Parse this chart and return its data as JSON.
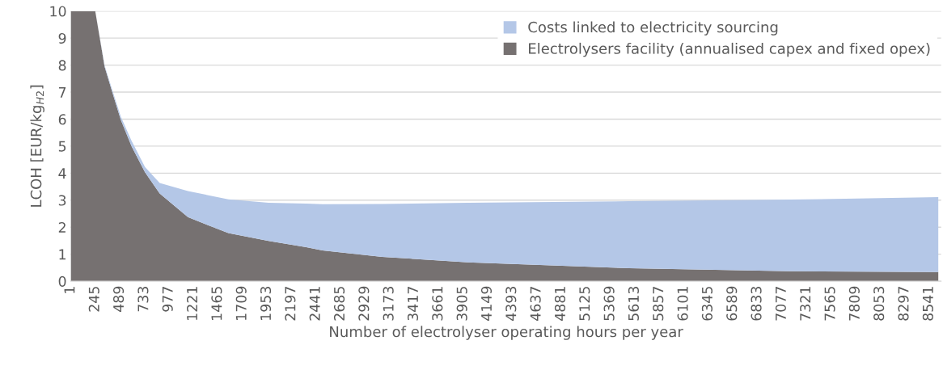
{
  "chart_data": {
    "type": "area",
    "stacked": true,
    "xlabel": "Number of electrolyser operating hours per year",
    "ylabel": "LCOH [EUR/kg$_{H2}$]",
    "x": [
      1,
      245,
      338,
      418,
      499,
      606,
      740,
      886,
      1167,
      1569,
      1970,
      2345,
      2506,
      3100,
      3952,
      5558,
      7163,
      8632
    ],
    "series": [
      {
        "name": "Electrolysers facility (annualised capex and fixed opex)",
        "color": "#767171",
        "values": [
          10,
          10,
          7.94,
          6.96,
          5.98,
          5.0,
          4.03,
          3.25,
          2.37,
          1.78,
          1.49,
          1.26,
          1.14,
          0.9,
          0.7,
          0.48,
          0.37,
          0.34
        ]
      },
      {
        "name": "Costs linked to electricity sourcing",
        "color": "#b4c7e7",
        "values": [
          0,
          0,
          0.05,
          0.08,
          0.12,
          0.2,
          0.2,
          0.39,
          0.97,
          1.25,
          1.41,
          1.61,
          1.71,
          1.96,
          2.2,
          2.48,
          2.65,
          2.77
        ]
      }
    ],
    "xlim": [
      1,
      8660
    ],
    "xticks": [
      1,
      245,
      489,
      733,
      977,
      1221,
      1465,
      1709,
      1953,
      2197,
      2441,
      2685,
      2929,
      3173,
      3417,
      3661,
      3905,
      4149,
      4393,
      4637,
      4881,
      5125,
      5369,
      5613,
      5857,
      6101,
      6345,
      6589,
      6833,
      7077,
      7321,
      7565,
      7809,
      8053,
      8297,
      8541
    ],
    "ylim": [
      0,
      10
    ],
    "yticks": [
      0,
      1,
      2,
      3,
      4,
      5,
      6,
      7,
      8,
      9,
      10
    ],
    "grid": "y",
    "legend": "top right"
  }
}
